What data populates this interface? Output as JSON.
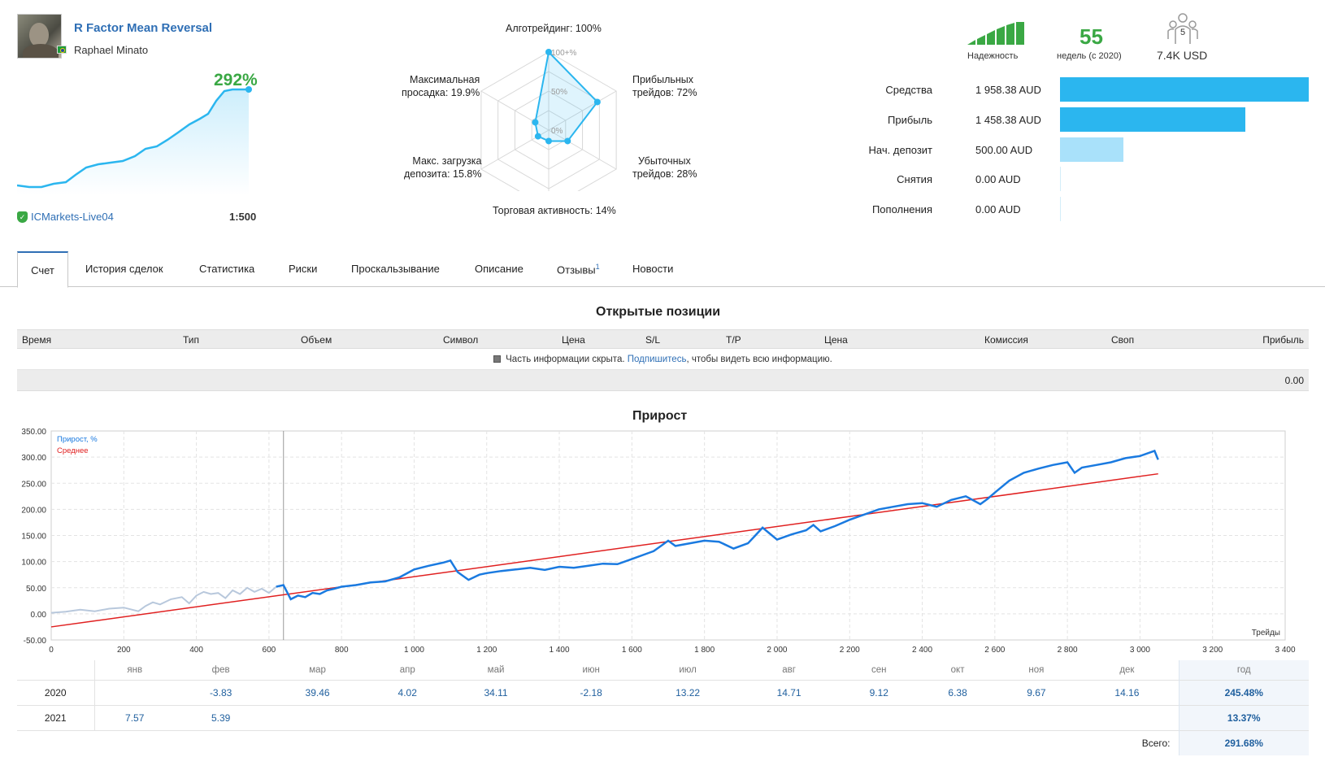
{
  "signal": {
    "title": "R Factor Mean Reversal",
    "author": "Raphael Minato",
    "growth": "292%",
    "broker": "ICMarkets-Live04",
    "leverage": "1:500"
  },
  "radar": {
    "labels": {
      "algo": "Алготрейдинг: 100%",
      "profit_trades_1": "Прибыльных",
      "profit_trades_2": "трейдов: 72%",
      "loss_trades_1": "Убыточных",
      "loss_trades_2": "трейдов: 28%",
      "activity": "Торговая активность: 14%",
      "load_1": "Макс. загрузка",
      "load_2": "депозита: 15.8%",
      "drawdown_1": "Максимальная",
      "drawdown_2": "просадка: 19.9%"
    },
    "scale": {
      "top": "100+%",
      "mid": "50%",
      "zero": "0%"
    },
    "values": [
      100,
      72,
      28,
      14,
      15.8,
      19.9
    ]
  },
  "stats": {
    "reliability_label": "Надежность",
    "weeks_value": "55",
    "weeks_label": "недель (с 2020)",
    "subscribers_count": "5",
    "subscribers_value": "7.4K USD"
  },
  "balance": [
    {
      "label": "Средства",
      "value": "1 958.38 AUD",
      "amount": 1958.38,
      "color": "#2bb6ef"
    },
    {
      "label": "Прибыль",
      "value": "1 458.38 AUD",
      "amount": 1458.38,
      "color": "#2bb6ef"
    },
    {
      "label": "Нач. депозит",
      "value": "500.00 AUD",
      "amount": 500,
      "color": "#a9e1fa"
    },
    {
      "label": "Снятия",
      "value": "0.00 AUD",
      "amount": 0,
      "color": "#2bb6ef"
    },
    {
      "label": "Пополнения",
      "value": "0.00 AUD",
      "amount": 0,
      "color": "#2bb6ef"
    }
  ],
  "tabs": [
    {
      "label": "Счет",
      "active": true
    },
    {
      "label": "История сделок"
    },
    {
      "label": "Статистика"
    },
    {
      "label": "Риски"
    },
    {
      "label": "Проскальзывание"
    },
    {
      "label": "Описание"
    },
    {
      "label": "Отзывы",
      "badge": "1"
    },
    {
      "label": "Новости"
    }
  ],
  "positions": {
    "title": "Открытые позиции",
    "columns": [
      "Время",
      "Тип",
      "Объем",
      "Символ",
      "Цена",
      "S/L",
      "T/P",
      "Цена",
      "Комиссия",
      "Своп",
      "Прибыль"
    ],
    "info_before": "Часть информации скрыта.",
    "info_link": "Подпишитесь",
    "info_after": ", чтобы видеть всю информацию.",
    "total": "0.00"
  },
  "chart_data": {
    "type": "line",
    "title": "Прирост",
    "xlabel": "Трейды",
    "ylabel": "",
    "xlim": [
      0,
      3400
    ],
    "ylim": [
      -50,
      350
    ],
    "x_ticks": [
      "0",
      "200",
      "400",
      "600",
      "800",
      "1 000",
      "1 200",
      "1 400",
      "1 600",
      "1 800",
      "2 000",
      "2 200",
      "2 400",
      "2 600",
      "2 800",
      "3 000",
      "3 200",
      "3 400"
    ],
    "y_ticks": [
      "350.00",
      "300.00",
      "250.00",
      "200.00",
      "150.00",
      "100.00",
      "50.00",
      "0.00",
      "-50.00"
    ],
    "legend": [
      "Прирост, %",
      "Среднее"
    ],
    "divider_x": 640,
    "series": [
      {
        "name": "Прирост, %",
        "color_pre": "#b8c8dc",
        "color": "#1a7ae0",
        "x": [
          0,
          40,
          80,
          120,
          160,
          200,
          240,
          260,
          280,
          300,
          330,
          360,
          380,
          400,
          420,
          440,
          460,
          480,
          500,
          520,
          540,
          560,
          580,
          600,
          620,
          640,
          660,
          680,
          700,
          720,
          740,
          760,
          780,
          800,
          840,
          880,
          920,
          960,
          1000,
          1040,
          1080,
          1100,
          1120,
          1150,
          1180,
          1200,
          1240,
          1280,
          1320,
          1360,
          1400,
          1440,
          1480,
          1520,
          1560,
          1600,
          1640,
          1660,
          1680,
          1700,
          1720,
          1760,
          1800,
          1840,
          1880,
          1920,
          1940,
          1960,
          2000,
          2040,
          2080,
          2100,
          2120,
          2160,
          2200,
          2240,
          2280,
          2320,
          2360,
          2400,
          2440,
          2480,
          2520,
          2560,
          2580,
          2600,
          2640,
          2680,
          2720,
          2760,
          2800,
          2820,
          2840,
          2880,
          2920,
          2960,
          3000,
          3040,
          3050
        ],
        "y": [
          2,
          4,
          8,
          5,
          10,
          12,
          5,
          15,
          22,
          18,
          28,
          32,
          20,
          35,
          42,
          38,
          40,
          30,
          45,
          38,
          50,
          42,
          48,
          40,
          52,
          55,
          28,
          35,
          32,
          40,
          38,
          45,
          48,
          52,
          55,
          60,
          62,
          70,
          85,
          92,
          98,
          102,
          80,
          65,
          75,
          78,
          82,
          85,
          88,
          84,
          90,
          88,
          92,
          96,
          95,
          105,
          115,
          120,
          130,
          140,
          130,
          135,
          140,
          138,
          125,
          135,
          150,
          165,
          142,
          152,
          160,
          170,
          158,
          168,
          180,
          190,
          200,
          205,
          210,
          212,
          205,
          218,
          225,
          210,
          220,
          232,
          255,
          270,
          278,
          285,
          290,
          270,
          280,
          285,
          290,
          298,
          302,
          312,
          295
        ]
      },
      {
        "name": "Среднее",
        "color": "#e02020",
        "x": [
          0,
          3050
        ],
        "y": [
          -25,
          268
        ]
      }
    ]
  },
  "monthly": {
    "months": [
      "янв",
      "фев",
      "мар",
      "апр",
      "май",
      "июн",
      "июл",
      "авг",
      "сен",
      "окт",
      "ноя",
      "дек"
    ],
    "year_header": "год",
    "rows": [
      {
        "year": "2020",
        "values": [
          "",
          "-3.83",
          "39.46",
          "4.02",
          "34.11",
          "-2.18",
          "13.22",
          "14.71",
          "9.12",
          "6.38",
          "9.67",
          "14.16"
        ],
        "total": "245.48%"
      },
      {
        "year": "2021",
        "values": [
          "7.57",
          "5.39",
          "",
          "",
          "",
          "",
          "",
          "",
          "",
          "",
          "",
          ""
        ],
        "total": "13.37%"
      }
    ],
    "grand_label": "Всего:",
    "grand_total": "291.68%"
  }
}
